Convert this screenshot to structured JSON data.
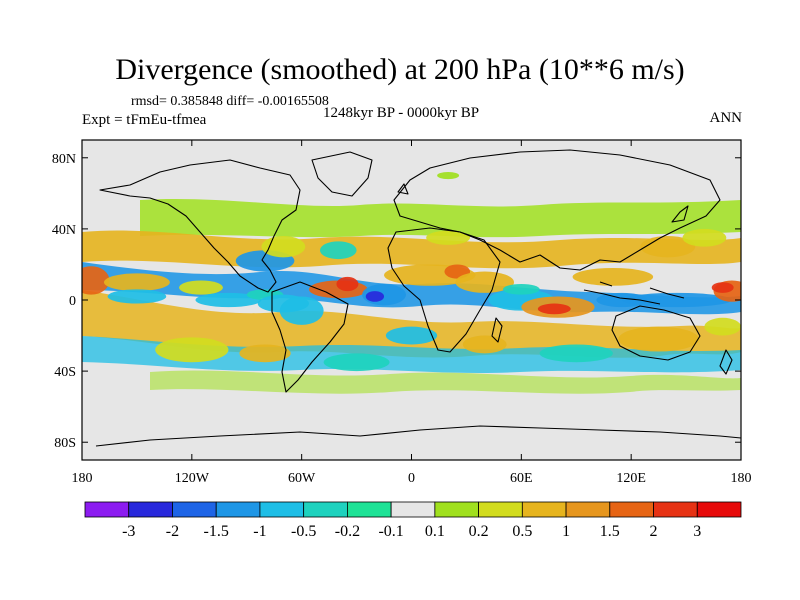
{
  "title": "Divergence (smoothed) at 200 hPa (10**6 m/s)",
  "stats": "rmsd= 0.385848 diff= -0.00165508",
  "experiment": "Expt = tFmEu-tfmea",
  "period": "1248kyr BP - 0000kyr BP",
  "season": "ANN",
  "map": {
    "projection": "cylindrical equidistant",
    "lon_range": [
      -180,
      180
    ],
    "lat_range": [
      -90,
      90
    ],
    "lon_ticks": [
      {
        "value": -180,
        "label": "180"
      },
      {
        "value": -120,
        "label": "120W"
      },
      {
        "value": -60,
        "label": "60W"
      },
      {
        "value": 0,
        "label": "0"
      },
      {
        "value": 60,
        "label": "60E"
      },
      {
        "value": 120,
        "label": "120E"
      },
      {
        "value": 180,
        "label": "180"
      }
    ],
    "lat_ticks": [
      {
        "value": 80,
        "label": "80N"
      },
      {
        "value": 40,
        "label": "40N"
      },
      {
        "value": 0,
        "label": "0"
      },
      {
        "value": -40,
        "label": "40S"
      },
      {
        "value": -80,
        "label": "80S"
      }
    ],
    "background_color": "#e6e6e6"
  },
  "colorbar": {
    "labels": [
      "-3",
      "-2",
      "-1.5",
      "-1",
      "-0.5",
      "-0.2",
      "-0.1",
      "0.1",
      "0.2",
      "0.5",
      "1",
      "1.5",
      "2",
      "3"
    ],
    "colors": [
      "#8c1cf0",
      "#2828dc",
      "#1e64e6",
      "#1e96e6",
      "#1ebee6",
      "#1ed2be",
      "#1ee296",
      "#e6e6e6",
      "#a0e01e",
      "#d2dc1e",
      "#e6b41e",
      "#e6961e",
      "#e66414",
      "#e63214",
      "#e60a0a"
    ]
  },
  "field": [
    {
      "lon": -175,
      "lat": 11,
      "w": 10,
      "h": 8,
      "level": 12
    },
    {
      "lon": -150,
      "lat": 10,
      "w": 18,
      "h": 5,
      "level": 10
    },
    {
      "lon": -150,
      "lat": 2,
      "w": 16,
      "h": 4,
      "level": 4
    },
    {
      "lon": -115,
      "lat": 7,
      "w": 12,
      "h": 4,
      "level": 9
    },
    {
      "lon": -100,
      "lat": 0,
      "w": 18,
      "h": 4,
      "level": 4
    },
    {
      "lon": -80,
      "lat": 3,
      "w": 10,
      "h": 3,
      "level": 5
    },
    {
      "lon": -70,
      "lat": -2,
      "w": 14,
      "h": 5,
      "level": 4
    },
    {
      "lon": -60,
      "lat": -6,
      "w": 12,
      "h": 8,
      "level": 4
    },
    {
      "lon": -40,
      "lat": 6,
      "w": 16,
      "h": 5,
      "level": 12
    },
    {
      "lon": -35,
      "lat": 9,
      "w": 6,
      "h": 4,
      "level": 13
    },
    {
      "lon": -15,
      "lat": 3,
      "w": 12,
      "h": 6,
      "level": 3
    },
    {
      "lon": -20,
      "lat": 2,
      "w": 5,
      "h": 3,
      "level": 1
    },
    {
      "lon": 10,
      "lat": 14,
      "w": 25,
      "h": 6,
      "level": 10
    },
    {
      "lon": 25,
      "lat": 16,
      "w": 7,
      "h": 4,
      "level": 12
    },
    {
      "lon": 40,
      "lat": 10,
      "w": 16,
      "h": 6,
      "level": 10
    },
    {
      "lon": 60,
      "lat": 0,
      "w": 18,
      "h": 6,
      "level": 4
    },
    {
      "lon": 60,
      "lat": 6,
      "w": 10,
      "h": 3,
      "level": 5
    },
    {
      "lon": 80,
      "lat": -4,
      "w": 20,
      "h": 6,
      "level": 11
    },
    {
      "lon": 78,
      "lat": -5,
      "w": 9,
      "h": 3,
      "level": 13
    },
    {
      "lon": 110,
      "lat": 13,
      "w": 22,
      "h": 5,
      "level": 10
    },
    {
      "lon": 115,
      "lat": 0,
      "w": 14,
      "h": 4,
      "level": 3
    },
    {
      "lon": 145,
      "lat": 0,
      "w": 30,
      "h": 4,
      "level": 3
    },
    {
      "lon": 175,
      "lat": 5,
      "w": 10,
      "h": 6,
      "level": 12
    },
    {
      "lon": 170,
      "lat": 7,
      "w": 6,
      "h": 3,
      "level": 13
    },
    {
      "lon": 140,
      "lat": 30,
      "w": 15,
      "h": 6,
      "level": 10
    },
    {
      "lon": 160,
      "lat": 35,
      "w": 12,
      "h": 5,
      "level": 9
    },
    {
      "lon": 135,
      "lat": -22,
      "w": 22,
      "h": 7,
      "level": 10
    },
    {
      "lon": 170,
      "lat": -15,
      "w": 10,
      "h": 5,
      "level": 9
    },
    {
      "lon": -120,
      "lat": -28,
      "w": 20,
      "h": 7,
      "level": 9
    },
    {
      "lon": -80,
      "lat": -30,
      "w": 14,
      "h": 5,
      "level": 10
    },
    {
      "lon": -80,
      "lat": 22,
      "w": 16,
      "h": 6,
      "level": 3
    },
    {
      "lon": -70,
      "lat": 30,
      "w": 12,
      "h": 6,
      "level": 9
    },
    {
      "lon": -40,
      "lat": 28,
      "w": 10,
      "h": 5,
      "level": 5
    },
    {
      "lon": 20,
      "lat": 35,
      "w": 12,
      "h": 4,
      "level": 9
    },
    {
      "lon": 40,
      "lat": -25,
      "w": 12,
      "h": 5,
      "level": 10
    },
    {
      "lon": 0,
      "lat": -20,
      "w": 14,
      "h": 5,
      "level": 4
    },
    {
      "lon": -30,
      "lat": -35,
      "w": 18,
      "h": 5,
      "level": 5
    },
    {
      "lon": 90,
      "lat": -30,
      "w": 20,
      "h": 5,
      "level": 5
    },
    {
      "lon": 20,
      "lat": 70,
      "w": 6,
      "h": 2,
      "level": 8
    }
  ]
}
